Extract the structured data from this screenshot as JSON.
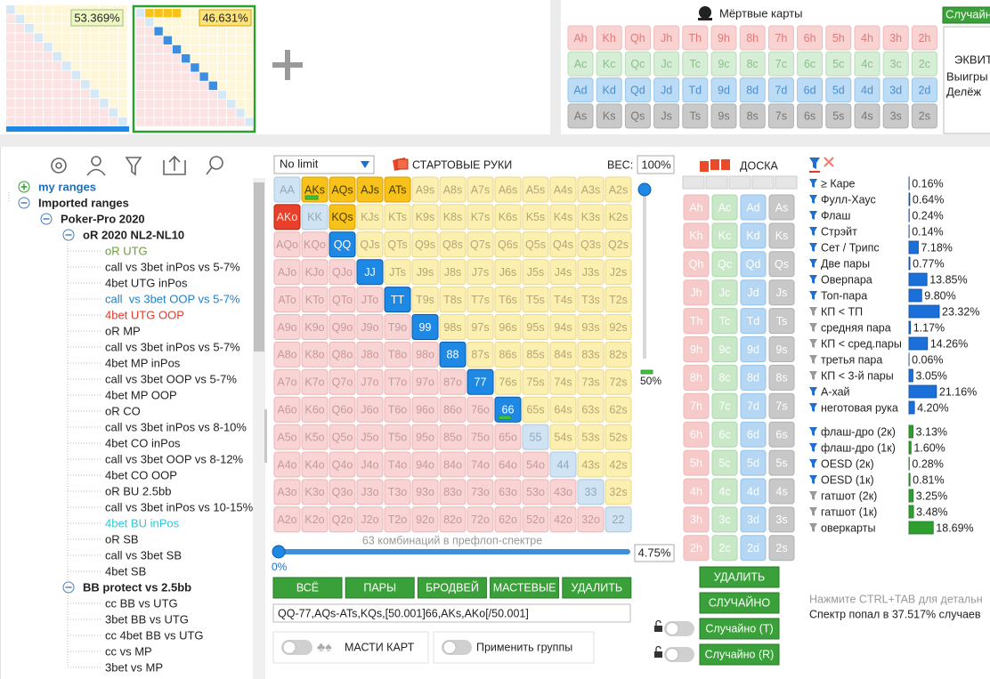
{
  "range_thumbnails": [
    {
      "percent": "53.369%"
    },
    {
      "percent": "46.631%"
    }
  ],
  "dead_cards": {
    "title": "Мёртвые карты",
    "rows": [
      [
        "Ah",
        "Kh",
        "Qh",
        "Jh",
        "Th",
        "9h",
        "8h",
        "7h",
        "6h",
        "5h",
        "4h",
        "3h",
        "2h"
      ],
      [
        "Ac",
        "Kc",
        "Qc",
        "Jc",
        "Tc",
        "9c",
        "8c",
        "7c",
        "6c",
        "5c",
        "4c",
        "3c",
        "2c"
      ],
      [
        "Ad",
        "Kd",
        "Qd",
        "Jd",
        "Td",
        "9d",
        "8d",
        "7d",
        "6d",
        "5d",
        "4d",
        "3d",
        "2d"
      ],
      [
        "As",
        "Ks",
        "Qs",
        "Js",
        "Ts",
        "9s",
        "8s",
        "7s",
        "6s",
        "5s",
        "4s",
        "3s",
        "2s"
      ]
    ]
  },
  "equity_panel": {
    "button": "Случайно",
    "lines": [
      "ЭКВИТ",
      "Выигры",
      "Делёж"
    ]
  },
  "tree": [
    {
      "label": "my ranges",
      "level": 0,
      "expanded": false,
      "color": "#1e6fb8"
    },
    {
      "label": "Imported ranges",
      "level": 0,
      "expanded": true
    },
    {
      "label": "Poker-Pro 2020",
      "level": 1,
      "expanded": true
    },
    {
      "label": "oR 2020 NL2-NL10",
      "level": 2,
      "expanded": true
    },
    {
      "label": "oR UTG",
      "level": 3,
      "color": "#6b9e3a"
    },
    {
      "label": "call vs 3bet inPos vs 5-7%",
      "level": 3
    },
    {
      "label": "4bet UTG inPos",
      "level": 3
    },
    {
      "label": "call  vs 3bet OOP vs 5-7%",
      "level": 3,
      "color": "#1e7fc8"
    },
    {
      "label": "4bet UTG OOP",
      "level": 3,
      "color": "#e03a2a"
    },
    {
      "label": "oR MP",
      "level": 3
    },
    {
      "label": "call vs 3bet inPos vs 5-7%",
      "level": 3
    },
    {
      "label": "4bet MP inPos",
      "level": 3
    },
    {
      "label": "call vs 3bet OOP vs 5-7%",
      "level": 3
    },
    {
      "label": "4bet MP OOP",
      "level": 3
    },
    {
      "label": "oR CO",
      "level": 3
    },
    {
      "label": "call vs 3bet inPos vs 8-10%",
      "level": 3
    },
    {
      "label": "4bet CO inPos",
      "level": 3
    },
    {
      "label": "call vs 3bet OOP vs 8-12%",
      "level": 3
    },
    {
      "label": "4bet CO OOP",
      "level": 3
    },
    {
      "label": "oR BU 2.5bb",
      "level": 3
    },
    {
      "label": "call vs 3bet inPos vs 10-15%",
      "level": 3
    },
    {
      "label": "4bet BU inPos",
      "level": 3,
      "color": "#2ec8d8"
    },
    {
      "label": "oR SB",
      "level": 3
    },
    {
      "label": "call vs 3bet SB",
      "level": 3
    },
    {
      "label": "4bet SB",
      "level": 3
    },
    {
      "label": "BB protect vs 2.5bb",
      "level": 2,
      "expanded": true
    },
    {
      "label": "cc BB vs UTG",
      "level": 3
    },
    {
      "label": "3bet BB vs UTG",
      "level": 3
    },
    {
      "label": "cc 4bet BB vs UTG",
      "level": 3
    },
    {
      "label": "cc vs MP",
      "level": 3
    },
    {
      "label": "3bet vs MP",
      "level": 3
    }
  ],
  "hand_grid": {
    "game": "No limit",
    "title": "СТАРТОВЫЕ РУКИ",
    "weight_label": "ВЕС:",
    "weight": "100%",
    "rows": [
      [
        "AA",
        "AKs",
        "AQs",
        "AJs",
        "ATs",
        "A9s",
        "A8s",
        "A7s",
        "A6s",
        "A5s",
        "A4s",
        "A3s",
        "A2s"
      ],
      [
        "AKo",
        "KK",
        "KQs",
        "KJs",
        "KTs",
        "K9s",
        "K8s",
        "K7s",
        "K6s",
        "K5s",
        "K4s",
        "K3s",
        "K2s"
      ],
      [
        "AQo",
        "KQo",
        "QQ",
        "QJs",
        "QTs",
        "Q9s",
        "Q8s",
        "Q7s",
        "Q6s",
        "Q5s",
        "Q4s",
        "Q3s",
        "Q2s"
      ],
      [
        "AJo",
        "KJo",
        "QJo",
        "JJ",
        "JTs",
        "J9s",
        "J8s",
        "J7s",
        "J6s",
        "J5s",
        "J4s",
        "J3s",
        "J2s"
      ],
      [
        "ATo",
        "KTo",
        "QTo",
        "JTo",
        "TT",
        "T9s",
        "T8s",
        "T7s",
        "T6s",
        "T5s",
        "T4s",
        "T3s",
        "T2s"
      ],
      [
        "A9o",
        "K9o",
        "Q9o",
        "J9o",
        "T9o",
        "99",
        "98s",
        "97s",
        "96s",
        "95s",
        "94s",
        "93s",
        "92s"
      ],
      [
        "A8o",
        "K8o",
        "Q8o",
        "J8o",
        "T8o",
        "98o",
        "88",
        "87s",
        "86s",
        "85s",
        "84s",
        "83s",
        "82s"
      ],
      [
        "A7o",
        "K7o",
        "Q7o",
        "J7o",
        "T7o",
        "97o",
        "87o",
        "77",
        "76s",
        "75s",
        "74s",
        "73s",
        "72s"
      ],
      [
        "A6o",
        "K6o",
        "Q6o",
        "J6o",
        "T6o",
        "96o",
        "86o",
        "76o",
        "66",
        "65s",
        "64s",
        "63s",
        "62s"
      ],
      [
        "A5o",
        "K5o",
        "Q5o",
        "J5o",
        "T5o",
        "95o",
        "85o",
        "75o",
        "65o",
        "55",
        "54s",
        "53s",
        "52s"
      ],
      [
        "A4o",
        "K4o",
        "Q4o",
        "J4o",
        "T4o",
        "94o",
        "84o",
        "74o",
        "64o",
        "54o",
        "44",
        "43s",
        "42s"
      ],
      [
        "A3o",
        "K3o",
        "Q3o",
        "J3o",
        "T3o",
        "93o",
        "83o",
        "73o",
        "63o",
        "53o",
        "43o",
        "33",
        "32s"
      ],
      [
        "A2o",
        "K2o",
        "Q2o",
        "J2o",
        "T2o",
        "92o",
        "82o",
        "72o",
        "62o",
        "52o",
        "42o",
        "32o",
        "22"
      ]
    ],
    "selected": [
      "AKs",
      "AQs",
      "AJs",
      "ATs",
      "KQs",
      "AKo",
      "QQ",
      "JJ",
      "TT",
      "99",
      "88",
      "77",
      "66"
    ],
    "partial": [
      "AKs",
      "66"
    ],
    "slider_label": "50%",
    "combos": "63 комбинаций в префлоп-спектре",
    "percent": "4.75%",
    "min_label": "0%",
    "buttons": [
      "ВСЁ",
      "ПАРЫ",
      "БРОДВЕЙ",
      "МАСТЕВЫЕ",
      "УДАЛИТЬ"
    ],
    "range_text": "QQ-77,AQs-ATs,KQs,[50.001]66,AKs,AKo[/50.001]",
    "toggles": [
      "МАСТИ КАРТ",
      "Применить группы"
    ]
  },
  "board": {
    "title": "ДОСКА",
    "cards": [
      [
        "Ah",
        "Ac",
        "Ad",
        "As"
      ],
      [
        "Kh",
        "Kc",
        "Kd",
        "Ks"
      ],
      [
        "Qh",
        "Qc",
        "Qd",
        "Qs"
      ],
      [
        "Jh",
        "Jc",
        "Jd",
        "Js"
      ],
      [
        "Th",
        "Tc",
        "Td",
        "Ts"
      ],
      [
        "9h",
        "9c",
        "9d",
        "9s"
      ],
      [
        "8h",
        "8c",
        "8d",
        "8s"
      ],
      [
        "7h",
        "7c",
        "7d",
        "7s"
      ],
      [
        "6h",
        "6c",
        "6d",
        "6s"
      ],
      [
        "5h",
        "5c",
        "5d",
        "5s"
      ],
      [
        "4h",
        "4c",
        "4d",
        "4s"
      ],
      [
        "3h",
        "3c",
        "3d",
        "3s"
      ],
      [
        "2h",
        "2c",
        "2d",
        "2s"
      ]
    ],
    "buttons": [
      "УДАЛИТЬ",
      "СЛУЧАЙНО",
      "Случайно (T)",
      "Случайно (R)"
    ]
  },
  "stats": {
    "made": [
      {
        "name": "≥ Каре",
        "value": 0.16,
        "value_label": "0.16%",
        "active": true
      },
      {
        "name": "Фулл-Хаус",
        "value": 0.64,
        "value_label": "0.64%",
        "active": true
      },
      {
        "name": "Флаш",
        "value": 0.24,
        "value_label": "0.24%",
        "active": true
      },
      {
        "name": "Стрэйт",
        "value": 0.14,
        "value_label": "0.14%",
        "active": true
      },
      {
        "name": "Сет / Трипс",
        "value": 7.18,
        "value_label": "7.18%",
        "active": true
      },
      {
        "name": "Две пары",
        "value": 0.77,
        "value_label": "0.77%",
        "active": true
      },
      {
        "name": "Оверпара",
        "value": 13.85,
        "value_label": "13.85%",
        "active": true
      },
      {
        "name": "Топ-пара",
        "value": 9.8,
        "value_label": "9.80%",
        "active": true
      },
      {
        "name": "КП < ТП",
        "value": 23.32,
        "value_label": "23.32%",
        "active": false
      },
      {
        "name": "средняя пара",
        "value": 1.17,
        "value_label": "1.17%",
        "active": false
      },
      {
        "name": "КП < сред.пары",
        "value": 14.26,
        "value_label": "14.26%",
        "active": false
      },
      {
        "name": "третья пара",
        "value": 0.06,
        "value_label": "0.06%",
        "active": false
      },
      {
        "name": "КП < 3-й пары",
        "value": 3.05,
        "value_label": "3.05%",
        "active": false
      },
      {
        "name": "А-хай",
        "value": 21.16,
        "value_label": "21.16%",
        "active": true
      },
      {
        "name": "неготовая рука",
        "value": 4.2,
        "value_label": "4.20%",
        "active": true
      }
    ],
    "draws": [
      {
        "name": "флаш-дро (2к)",
        "value": 3.13,
        "value_label": "3.13%",
        "active": true
      },
      {
        "name": "флаш-дро (1к)",
        "value": 1.6,
        "value_label": "1.60%",
        "active": true
      },
      {
        "name": "OESD (2к)",
        "value": 0.28,
        "value_label": "0.28%",
        "active": true
      },
      {
        "name": "OESD (1к)",
        "value": 0.81,
        "value_label": "0.81%",
        "active": true
      },
      {
        "name": "гатшот (2к)",
        "value": 3.25,
        "value_label": "3.25%",
        "active": false
      },
      {
        "name": "гатшот (1к)",
        "value": 3.48,
        "value_label": "3.48%",
        "active": false
      },
      {
        "name": "оверкарты",
        "value": 18.69,
        "value_label": "18.69%",
        "active": false
      }
    ],
    "hint": "Нажмите CTRL+TAB для детальн",
    "result": "Спектр попал в 37.517% случаев"
  }
}
